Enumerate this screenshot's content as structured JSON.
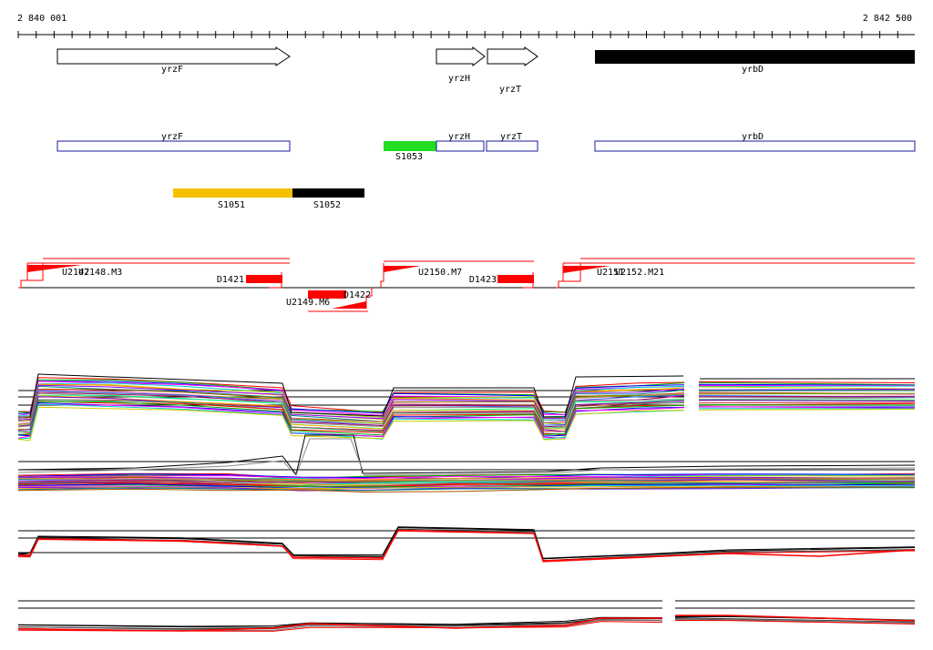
{
  "ruler": {
    "start_label": "2 840 001",
    "end_label": "2 842 500",
    "start": 2840001,
    "end": 2842500
  },
  "genes": [
    {
      "name": "yrzF",
      "strand": "+",
      "fill": "white"
    },
    {
      "name": "yrzH",
      "strand": "+",
      "fill": "white"
    },
    {
      "name": "yrzT",
      "strand": "+",
      "fill": "white"
    },
    {
      "name": "yrbD",
      "strand": "+",
      "fill": "black"
    }
  ],
  "gene_boxes": [
    {
      "name": "yrzF"
    },
    {
      "name": "yrzH"
    },
    {
      "name": "yrzT"
    },
    {
      "name": "yrbD"
    }
  ],
  "segments": [
    {
      "name": "S1053",
      "color": "#22dd22"
    },
    {
      "name": "S1051",
      "color": "#f5c000"
    },
    {
      "name": "S1052",
      "color": "#000000"
    }
  ],
  "transcript_labels": {
    "u2148": "U2148.M3",
    "u2147": "U2147",
    "d1421": "D1421",
    "d1422": "D1422",
    "u2149": "U2149.M6",
    "u2150": "U2150.M7",
    "d1423": "D1423",
    "u2151": "U2151",
    "u2152": "U2152.M21"
  },
  "colors": {
    "gene_box_border": "#1a1aa0",
    "feature_red": "#ff0000",
    "axis": "#000000"
  }
}
